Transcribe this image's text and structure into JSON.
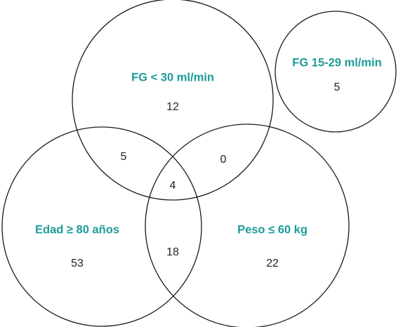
{
  "sets": [
    {
      "label": "FG < 30 ml/min",
      "count": 12
    },
    {
      "label": "FG 15-29 ml/min",
      "count": 5
    },
    {
      "label": "Edad ≥ 80 años",
      "count": 53
    },
    {
      "label": "Peso ≤ 60 kg",
      "count": 22
    }
  ],
  "overlaps": [
    {
      "count": 5
    },
    {
      "count": 0
    },
    {
      "count": 4
    },
    {
      "count": 18
    }
  ]
}
